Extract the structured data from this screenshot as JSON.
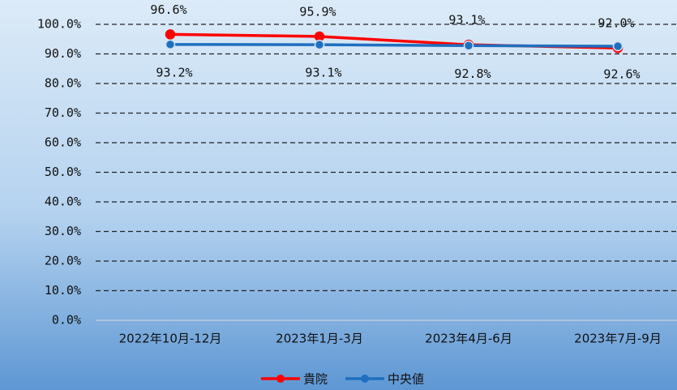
{
  "chart_data": {
    "type": "line",
    "categories": [
      "2022年10月-12月",
      "2023年1月-3月",
      "2023年4月-6月",
      "2023年7月-9月"
    ],
    "series": [
      {
        "name": "貴院",
        "color": "#ff0000",
        "values": [
          96.6,
          95.9,
          93.1,
          92.0
        ],
        "value_labels": [
          "96.6%",
          "95.9%",
          "93.1%",
          "92.0%"
        ]
      },
      {
        "name": "中央値",
        "color": "#1f6fc0",
        "values": [
          93.2,
          93.1,
          92.8,
          92.6
        ],
        "value_labels": [
          "93.2%",
          "93.1%",
          "92.8%",
          "92.6%"
        ]
      }
    ],
    "ylim": [
      0,
      100
    ],
    "yticks": [
      {
        "value": 0,
        "label": "0.0%"
      },
      {
        "value": 10,
        "label": "10.0%"
      },
      {
        "value": 20,
        "label": "20.0%"
      },
      {
        "value": 30,
        "label": "30.0%"
      },
      {
        "value": 40,
        "label": "40.0%"
      },
      {
        "value": 50,
        "label": "50.0%"
      },
      {
        "value": 60,
        "label": "60.0%"
      },
      {
        "value": 70,
        "label": "70.0%"
      },
      {
        "value": 80,
        "label": "80.0%"
      },
      {
        "value": 90,
        "label": "90.0%"
      },
      {
        "value": 100,
        "label": "100.0%"
      }
    ],
    "grid": true,
    "legend": "bottom"
  }
}
